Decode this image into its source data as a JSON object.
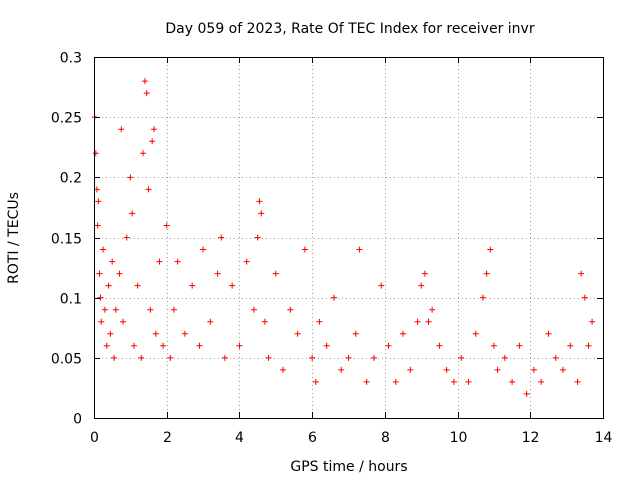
{
  "chart_data": {
    "type": "scatter",
    "title": "Day 059 of 2023, Rate Of TEC Index for receiver invr",
    "xlabel": "GPS time / hours",
    "ylabel": "ROTI / TECUs",
    "xlim": [
      0,
      14
    ],
    "ylim": [
      0,
      0.3
    ],
    "xticks": [
      0,
      2,
      4,
      6,
      8,
      10,
      12,
      14
    ],
    "xtick_labels": [
      "0",
      "2",
      "4",
      "6",
      "8",
      "10",
      "12",
      "14"
    ],
    "yticks": [
      0,
      0.05,
      0.1,
      0.15,
      0.2,
      0.25,
      0.3
    ],
    "ytick_labels": [
      "0",
      "0.05",
      "0.1",
      "0.15",
      "0.2",
      "0.25",
      "0.3"
    ],
    "grid": true,
    "marker": "+",
    "color": "#ff0000",
    "series": [
      {
        "name": "ROTI",
        "x": [
          0.02,
          0.05,
          0.08,
          0.1,
          0.12,
          0.15,
          0.18,
          0.2,
          0.25,
          0.3,
          0.35,
          0.4,
          0.45,
          0.5,
          0.55,
          0.6,
          0.7,
          0.75,
          0.8,
          0.9,
          1.0,
          1.05,
          1.1,
          1.2,
          1.3,
          1.35,
          1.4,
          1.45,
          1.5,
          1.55,
          1.6,
          1.65,
          1.7,
          1.8,
          1.9,
          2.0,
          2.1,
          2.2,
          2.3,
          2.5,
          2.7,
          2.9,
          3.0,
          3.2,
          3.4,
          3.5,
          3.6,
          3.8,
          4.0,
          4.2,
          4.4,
          4.5,
          4.55,
          4.6,
          4.7,
          4.8,
          5.0,
          5.2,
          5.4,
          5.6,
          5.8,
          6.0,
          6.1,
          6.2,
          6.4,
          6.6,
          6.8,
          7.0,
          7.2,
          7.3,
          7.5,
          7.7,
          7.9,
          8.1,
          8.3,
          8.5,
          8.7,
          8.9,
          9.0,
          9.1,
          9.2,
          9.3,
          9.5,
          9.7,
          9.9,
          10.1,
          10.3,
          10.5,
          10.7,
          10.8,
          10.9,
          11.0,
          11.1,
          11.3,
          11.5,
          11.7,
          11.9,
          12.1,
          12.3,
          12.5,
          12.7,
          12.9,
          13.1,
          13.3,
          13.4,
          13.5,
          13.6,
          13.7
        ],
        "y": [
          0.25,
          0.22,
          0.19,
          0.16,
          0.18,
          0.12,
          0.1,
          0.08,
          0.14,
          0.09,
          0.06,
          0.11,
          0.07,
          0.13,
          0.05,
          0.09,
          0.12,
          0.24,
          0.08,
          0.15,
          0.2,
          0.17,
          0.06,
          0.11,
          0.05,
          0.22,
          0.28,
          0.27,
          0.19,
          0.09,
          0.23,
          0.24,
          0.07,
          0.13,
          0.06,
          0.16,
          0.05,
          0.09,
          0.13,
          0.07,
          0.11,
          0.06,
          0.14,
          0.08,
          0.12,
          0.15,
          0.05,
          0.11,
          0.06,
          0.13,
          0.09,
          0.15,
          0.18,
          0.17,
          0.08,
          0.05,
          0.12,
          0.04,
          0.09,
          0.07,
          0.14,
          0.05,
          0.03,
          0.08,
          0.06,
          0.1,
          0.04,
          0.05,
          0.07,
          0.14,
          0.03,
          0.05,
          0.11,
          0.06,
          0.03,
          0.07,
          0.04,
          0.08,
          0.11,
          0.12,
          0.08,
          0.09,
          0.06,
          0.04,
          0.03,
          0.05,
          0.03,
          0.07,
          0.1,
          0.12,
          0.14,
          0.06,
          0.04,
          0.05,
          0.03,
          0.06,
          0.02,
          0.04,
          0.03,
          0.07,
          0.05,
          0.04,
          0.06,
          0.03,
          0.12,
          0.1,
          0.06,
          0.08
        ]
      }
    ]
  }
}
